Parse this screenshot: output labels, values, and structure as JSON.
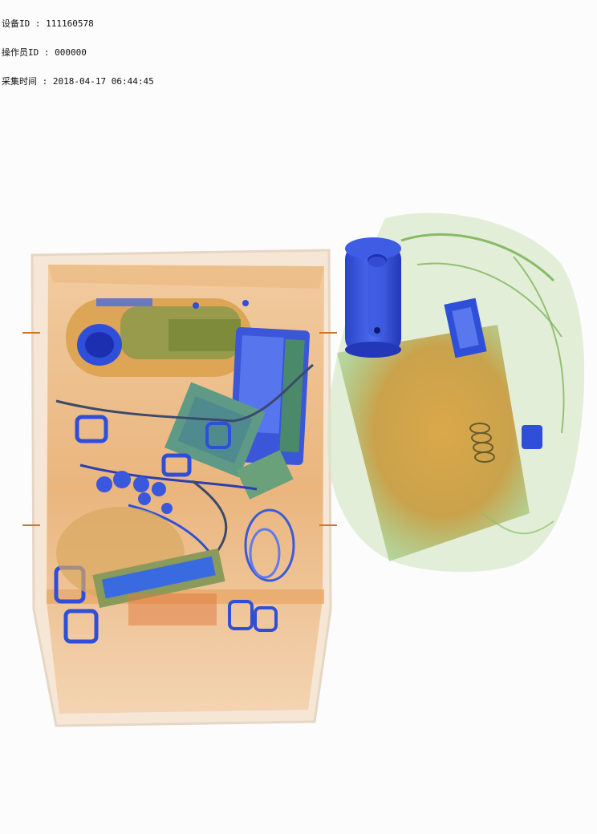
{
  "overlay": {
    "device_id_label": "设备ID",
    "device_id_value": "111160578",
    "operator_id_label": "操作员ID",
    "operator_id_value": "000000",
    "capture_time_label": "采集时间",
    "capture_time_value": "2018-04-17 06:44:45",
    "separator": " : "
  },
  "colors": {
    "background": "#fcfcfd",
    "organic_orange": "#e8a85a",
    "organic_dark_orange": "#e06a2a",
    "inorganic_green": "#6fae4a",
    "mixed_olive": "#a8a03a",
    "metal_blue": "#2f4fd8",
    "dense_dark_blue": "#1c2fb0",
    "tray_edge": "#d9cdb8"
  },
  "objects": {
    "tray": "plastic-tray",
    "bag": "soft-bag",
    "bottle": "metal-canister",
    "phone": "mobile-phone",
    "cables": "tangled-cables",
    "keys": "key-rings"
  }
}
